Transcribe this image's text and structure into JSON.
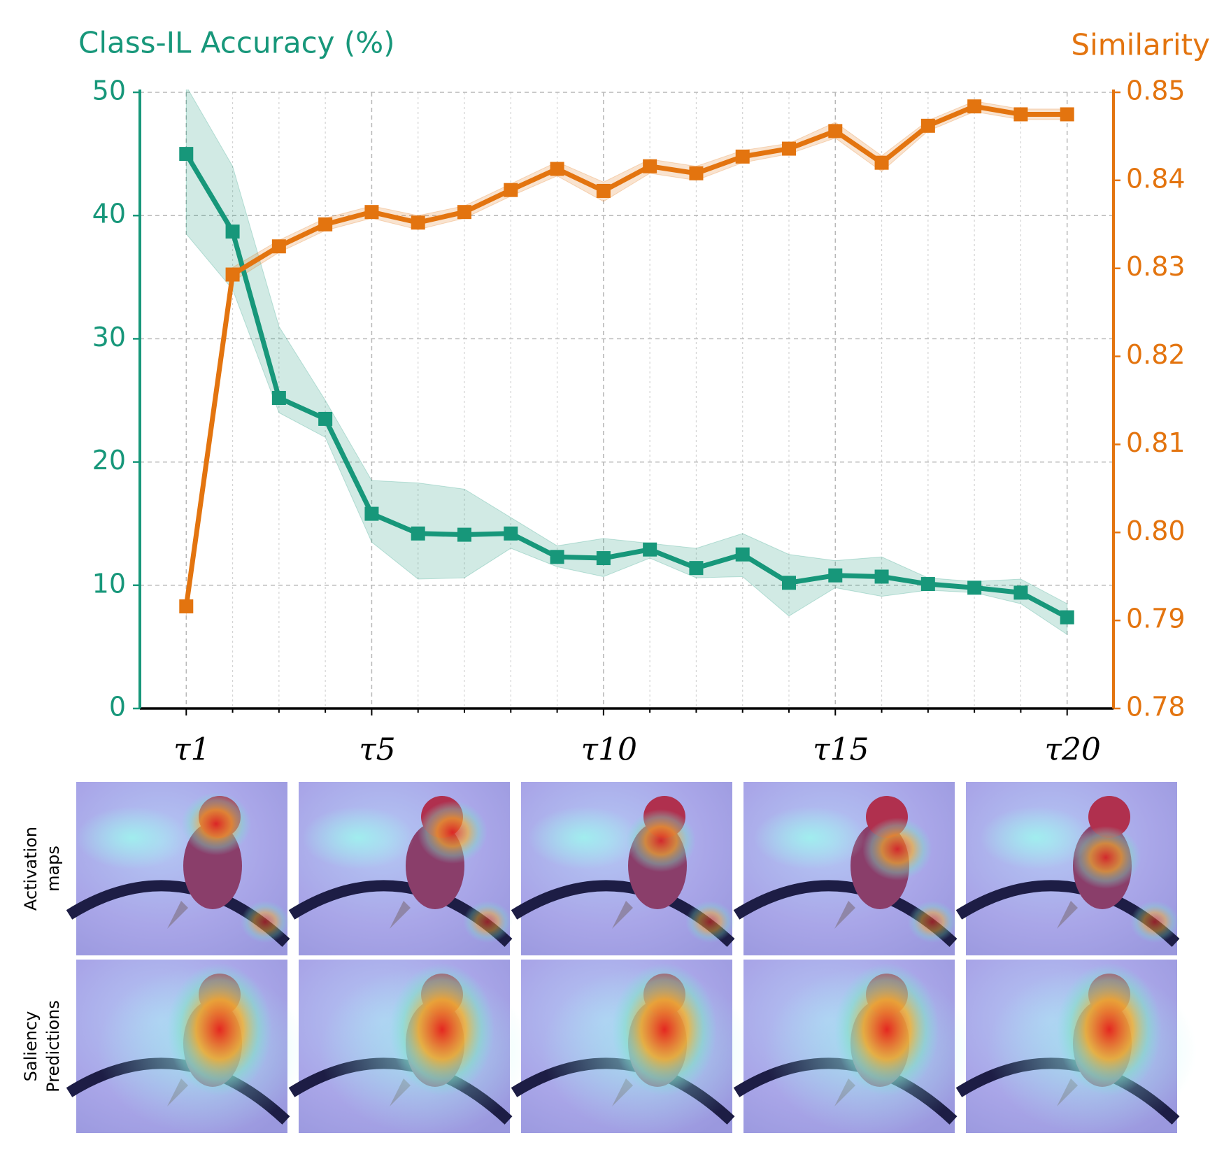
{
  "chart_data": {
    "type": "line",
    "title_left": "Class-IL Accuracy (%)",
    "title_right": "Similarity",
    "x": [
      1,
      2,
      3,
      4,
      5,
      6,
      7,
      8,
      9,
      10,
      11,
      12,
      13,
      14,
      15,
      16,
      17,
      18,
      19,
      20
    ],
    "categories": [
      "τ1",
      null,
      null,
      null,
      "τ5",
      null,
      null,
      null,
      null,
      "τ10",
      null,
      null,
      null,
      null,
      "τ15",
      null,
      null,
      null,
      null,
      "τ20"
    ],
    "xlim": [
      0,
      21
    ],
    "ylim": [
      0,
      50
    ],
    "yticks": [
      0,
      10,
      20,
      30,
      40,
      50
    ],
    "y2lim": [
      0.78,
      0.85
    ],
    "y2ticks": [
      0.78,
      0.79,
      {
        "value": 0.8,
        "label": "0.80"
      },
      0.81,
      0.82,
      0.83,
      0.84,
      0.85
    ],
    "grid": true,
    "series": [
      {
        "name": "Class-IL Accuracy",
        "color": "#17977a",
        "axis": "y",
        "values": [
          45.0,
          38.7,
          25.2,
          23.5,
          15.8,
          14.2,
          14.1,
          14.2,
          12.3,
          12.2,
          12.9,
          11.4,
          12.5,
          10.2,
          10.8,
          10.7,
          10.1,
          9.8,
          9.4,
          7.4
        ],
        "band_low": [
          38.5,
          34.0,
          24.0,
          22.0,
          13.5,
          10.5,
          10.6,
          13.0,
          11.5,
          10.7,
          12.2,
          10.6,
          10.7,
          7.5,
          9.8,
          9.1,
          9.6,
          9.4,
          8.5,
          6.0
        ],
        "band_high": [
          50.5,
          44.0,
          31.0,
          25.0,
          18.5,
          18.3,
          17.8,
          15.5,
          13.2,
          13.8,
          13.4,
          13.0,
          14.2,
          12.5,
          12.0,
          12.3,
          10.6,
          10.3,
          10.5,
          8.5
        ]
      },
      {
        "name": "Similarity",
        "color": "#e3740f",
        "axis": "y2",
        "values": [
          0.7916,
          0.8293,
          0.8325,
          0.835,
          0.8364,
          0.8352,
          0.8364,
          0.8389,
          0.8413,
          0.8388,
          0.8416,
          0.8408,
          0.8427,
          0.8436,
          0.8456,
          0.842,
          0.8462,
          0.8484,
          0.8475,
          0.8475
        ],
        "band_low": [
          0.7906,
          0.8285,
          0.8318,
          0.8343,
          0.8357,
          0.8344,
          0.8357,
          0.8382,
          0.8405,
          0.8376,
          0.8408,
          0.84,
          0.842,
          0.843,
          0.8448,
          0.841,
          0.8456,
          0.8478,
          0.8469,
          0.8469
        ],
        "band_high": [
          0.7926,
          0.8301,
          0.8332,
          0.8357,
          0.8371,
          0.836,
          0.8371,
          0.8396,
          0.8421,
          0.8398,
          0.8424,
          0.8416,
          0.8434,
          0.8442,
          0.8466,
          0.8428,
          0.8468,
          0.849,
          0.8481,
          0.8481
        ]
      }
    ]
  },
  "row_labels": [
    [
      "Activation",
      "maps"
    ],
    [
      "Saliency",
      "Predictions"
    ]
  ]
}
